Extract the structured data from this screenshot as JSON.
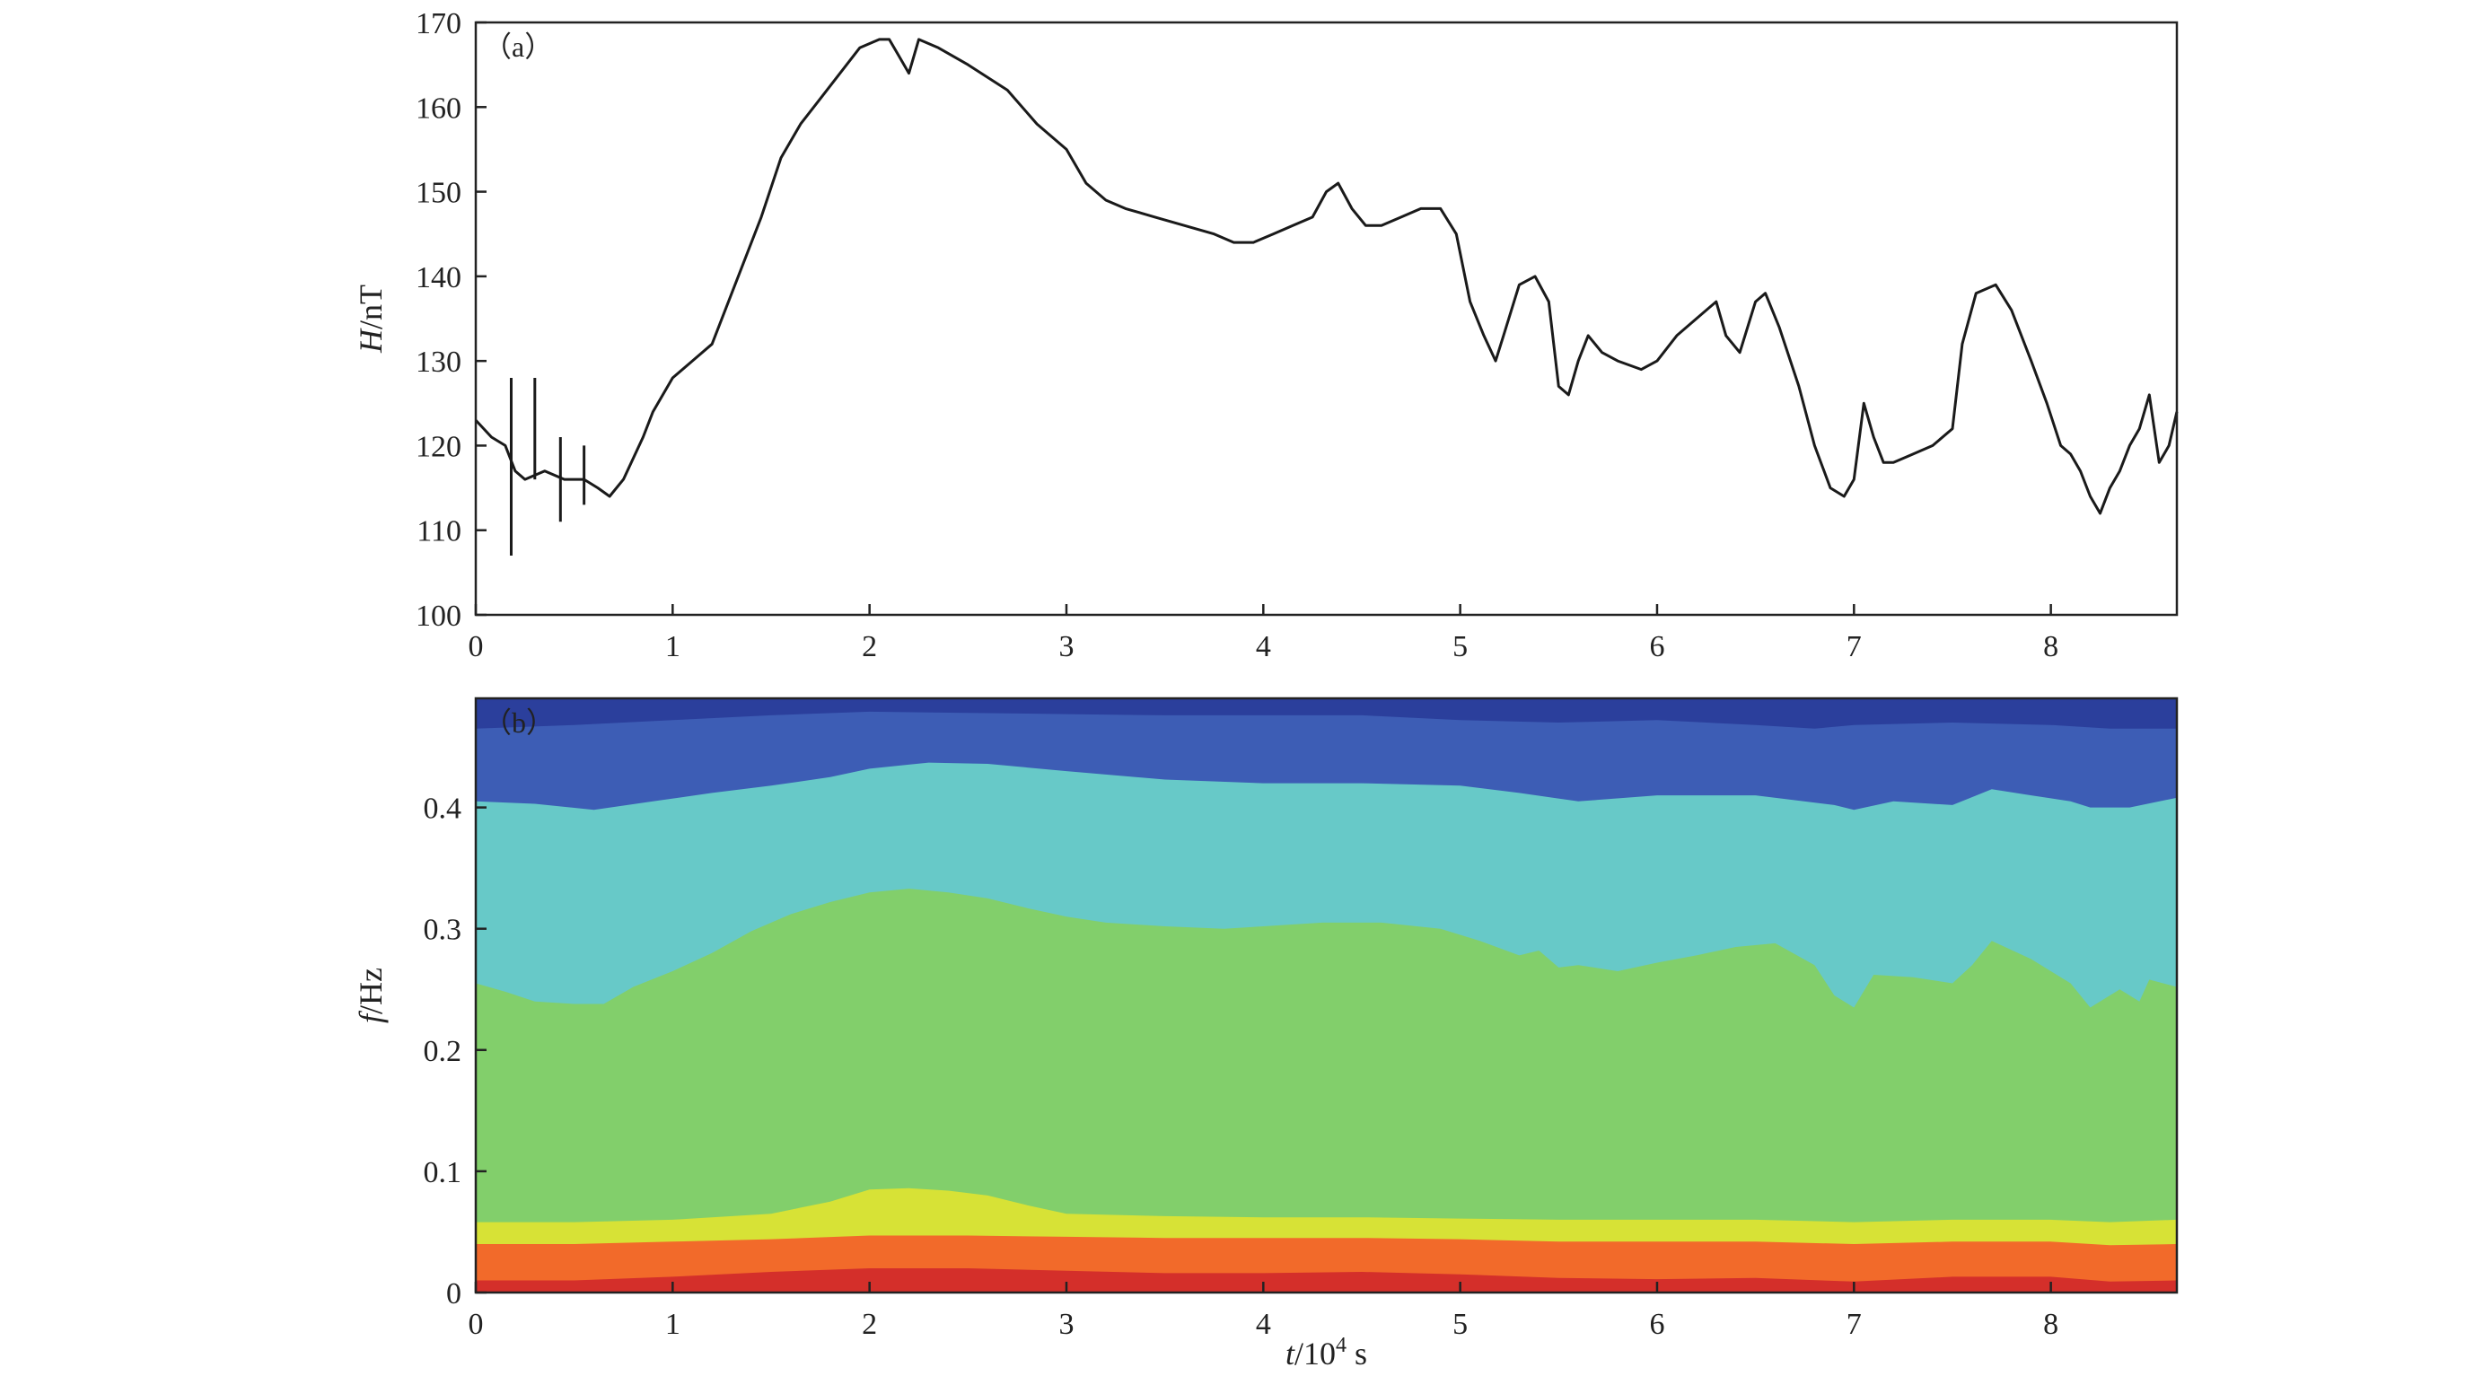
{
  "chart_data": [
    {
      "panel_label": "（a）",
      "type": "line",
      "xlabel": "",
      "ylabel_italic": "H",
      "ylabel_rest": "/nT",
      "xlim": [
        0,
        8.64
      ],
      "ylim": [
        100,
        170
      ],
      "xticks": [
        0,
        1,
        2,
        3,
        4,
        5,
        6,
        7,
        8
      ],
      "yticks": [
        100,
        110,
        120,
        130,
        140,
        150,
        160,
        170
      ],
      "colors": {
        "line": "#1a1a1a"
      },
      "series": [
        {
          "x": [
            0,
            0.08,
            0.15,
            0.2,
            0.25,
            0.35,
            0.45,
            0.55,
            0.62,
            0.68,
            0.75,
            0.85,
            0.9,
            1.0,
            1.1,
            1.2,
            1.35,
            1.45,
            1.55,
            1.65,
            1.75,
            1.85,
            1.95,
            2.05,
            2.1,
            2.15,
            2.2,
            2.25,
            2.35,
            2.5,
            2.7,
            2.85,
            3.0,
            3.1,
            3.2,
            3.3,
            3.45,
            3.6,
            3.75,
            3.85,
            3.95,
            4.05,
            4.15,
            4.25,
            4.32,
            4.38,
            4.45,
            4.52,
            4.6,
            4.7,
            4.8,
            4.9,
            4.98,
            5.05,
            5.12,
            5.18,
            5.22,
            5.3,
            5.38,
            5.45,
            5.5,
            5.55,
            5.6,
            5.65,
            5.72,
            5.8,
            5.92,
            6.0,
            6.1,
            6.2,
            6.3,
            6.35,
            6.42,
            6.5,
            6.55,
            6.62,
            6.72,
            6.8,
            6.88,
            6.95,
            7.0,
            7.05,
            7.1,
            7.15,
            7.2,
            7.3,
            7.4,
            7.5,
            7.55,
            7.62,
            7.72,
            7.8,
            7.9,
            7.98,
            8.05,
            8.1,
            8.15,
            8.2,
            8.25,
            8.3,
            8.35,
            8.4,
            8.45,
            8.5,
            8.55,
            8.6,
            8.64
          ],
          "y": [
            123,
            121,
            120,
            117,
            116,
            117,
            116,
            116,
            115,
            114,
            116,
            121,
            124,
            128,
            130,
            132,
            141,
            147,
            154,
            158,
            161,
            164,
            167,
            168,
            168,
            166,
            164,
            168,
            167,
            165,
            162,
            158,
            155,
            151,
            149,
            148,
            147,
            146,
            145,
            144,
            144,
            145,
            146,
            147,
            150,
            151,
            148,
            146,
            146,
            147,
            148,
            148,
            145,
            137,
            133,
            130,
            133,
            139,
            140,
            137,
            127,
            126,
            130,
            133,
            131,
            130,
            129,
            130,
            133,
            135,
            137,
            133,
            131,
            137,
            138,
            134,
            127,
            120,
            115,
            114,
            116,
            125,
            121,
            118,
            118,
            119,
            120,
            122,
            132,
            138,
            139,
            136,
            130,
            125,
            120,
            119,
            117,
            114,
            112,
            115,
            117,
            120,
            122,
            126,
            118,
            120,
            124
          ]
        }
      ],
      "spikes": [
        {
          "x": 0.18,
          "y_low": 107,
          "y_high": 128
        },
        {
          "x": 0.3,
          "y_low": 116,
          "y_high": 128
        },
        {
          "x": 0.43,
          "y_low": 111,
          "y_high": 121
        },
        {
          "x": 0.55,
          "y_low": 113,
          "y_high": 120
        }
      ]
    },
    {
      "panel_label": "（b）",
      "type": "area",
      "xlabel_italic": "t",
      "xlabel_mid": "/10",
      "xlabel_sup": "4",
      "xlabel_rest": " s",
      "ylabel_italic": "f",
      "ylabel_rest": "/Hz",
      "xlim": [
        0,
        8.64
      ],
      "ylim": [
        0,
        0.49
      ],
      "xticks": [
        0,
        1,
        2,
        3,
        4,
        5,
        6,
        7,
        8
      ],
      "yticks": [
        0,
        0.1,
        0.2,
        0.3,
        0.4
      ],
      "ytick_labels": [
        "0",
        "0.1",
        "0.2",
        "0.3",
        "0.4"
      ],
      "bands": [
        {
          "color": "#2b3f9c",
          "x": [
            0,
            8.64
          ],
          "y": [
            0.49,
            0.49
          ]
        },
        {
          "color": "#3d5db5",
          "x": [
            0,
            0.5,
            1,
            1.5,
            2,
            2.5,
            3,
            3.5,
            4,
            4.5,
            5,
            5.5,
            6,
            6.5,
            6.8,
            7,
            7.5,
            8,
            8.3,
            8.64
          ],
          "y": [
            0.465,
            0.468,
            0.472,
            0.476,
            0.479,
            0.478,
            0.477,
            0.476,
            0.476,
            0.476,
            0.472,
            0.47,
            0.472,
            0.468,
            0.465,
            0.468,
            0.47,
            0.468,
            0.465,
            0.465
          ]
        },
        {
          "color": "#67c9c8",
          "x": [
            0,
            0.3,
            0.6,
            0.9,
            1.2,
            1.5,
            1.8,
            2.0,
            2.3,
            2.6,
            3.0,
            3.5,
            4.0,
            4.5,
            5.0,
            5.3,
            5.6,
            6.0,
            6.5,
            6.9,
            7.0,
            7.2,
            7.5,
            7.7,
            7.9,
            8.1,
            8.2,
            8.4,
            8.64
          ],
          "y": [
            0.405,
            0.403,
            0.398,
            0.405,
            0.412,
            0.418,
            0.425,
            0.432,
            0.437,
            0.436,
            0.43,
            0.423,
            0.42,
            0.42,
            0.418,
            0.412,
            0.405,
            0.41,
            0.41,
            0.402,
            0.398,
            0.405,
            0.402,
            0.415,
            0.41,
            0.405,
            0.4,
            0.4,
            0.408
          ]
        },
        {
          "color": "#82cf6b",
          "x": [
            0,
            0.15,
            0.3,
            0.5,
            0.65,
            0.8,
            1.0,
            1.2,
            1.4,
            1.6,
            1.8,
            2.0,
            2.2,
            2.4,
            2.6,
            2.8,
            3.0,
            3.2,
            3.5,
            3.8,
            4.0,
            4.3,
            4.6,
            4.9,
            5.1,
            5.3,
            5.4,
            5.5,
            5.6,
            5.8,
            6.0,
            6.2,
            6.4,
            6.6,
            6.8,
            6.9,
            7.0,
            7.1,
            7.3,
            7.5,
            7.6,
            7.7,
            7.9,
            8.1,
            8.2,
            8.35,
            8.45,
            8.5,
            8.64
          ],
          "y": [
            0.255,
            0.248,
            0.24,
            0.238,
            0.238,
            0.252,
            0.265,
            0.28,
            0.298,
            0.312,
            0.322,
            0.33,
            0.333,
            0.33,
            0.325,
            0.317,
            0.31,
            0.305,
            0.302,
            0.3,
            0.302,
            0.305,
            0.305,
            0.3,
            0.29,
            0.278,
            0.282,
            0.268,
            0.27,
            0.265,
            0.272,
            0.278,
            0.285,
            0.288,
            0.27,
            0.245,
            0.235,
            0.262,
            0.26,
            0.255,
            0.27,
            0.29,
            0.275,
            0.255,
            0.235,
            0.25,
            0.24,
            0.258,
            0.252
          ]
        },
        {
          "color": "#d7e236",
          "x": [
            0,
            0.5,
            1.0,
            1.5,
            1.8,
            2.0,
            2.2,
            2.4,
            2.6,
            2.8,
            3.0,
            3.5,
            4.0,
            4.5,
            5.0,
            5.5,
            6.0,
            6.5,
            7.0,
            7.5,
            8.0,
            8.3,
            8.64
          ],
          "y": [
            0.058,
            0.058,
            0.06,
            0.065,
            0.075,
            0.085,
            0.086,
            0.084,
            0.08,
            0.072,
            0.065,
            0.063,
            0.062,
            0.062,
            0.061,
            0.06,
            0.06,
            0.06,
            0.058,
            0.06,
            0.06,
            0.058,
            0.06
          ]
        },
        {
          "color": "#f26a2a",
          "x": [
            0,
            0.5,
            1.0,
            1.5,
            2.0,
            2.5,
            3.0,
            3.5,
            4.0,
            4.5,
            5.0,
            5.5,
            6.0,
            6.5,
            7.0,
            7.5,
            8.0,
            8.3,
            8.64
          ],
          "y": [
            0.04,
            0.04,
            0.042,
            0.044,
            0.047,
            0.047,
            0.046,
            0.045,
            0.045,
            0.045,
            0.044,
            0.042,
            0.042,
            0.042,
            0.04,
            0.042,
            0.042,
            0.039,
            0.04
          ]
        },
        {
          "color": "#d42f2a",
          "x": [
            0,
            0.5,
            1.0,
            1.5,
            2.0,
            2.5,
            3.0,
            3.5,
            4.0,
            4.5,
            5.0,
            5.5,
            6.0,
            6.5,
            7.0,
            7.5,
            8.0,
            8.3,
            8.64
          ],
          "y": [
            0.01,
            0.01,
            0.013,
            0.017,
            0.02,
            0.02,
            0.018,
            0.016,
            0.016,
            0.017,
            0.015,
            0.012,
            0.011,
            0.012,
            0.009,
            0.013,
            0.013,
            0.009,
            0.01
          ]
        }
      ]
    }
  ]
}
